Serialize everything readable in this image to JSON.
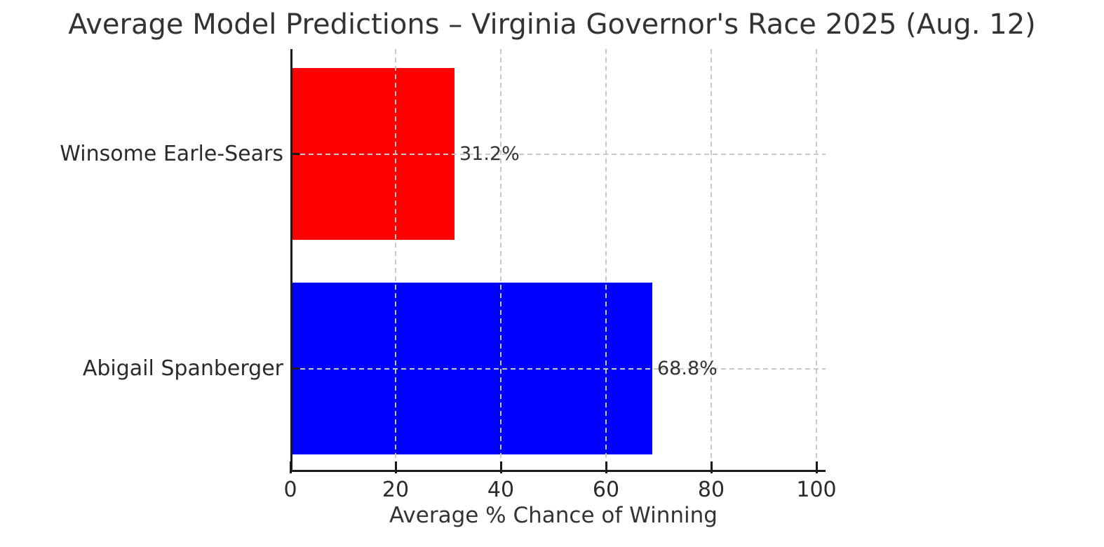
{
  "chart_data": {
    "type": "bar",
    "orientation": "horizontal",
    "title": "Average Model Predictions – Virginia Governor's Race 2025 (Aug. 12)",
    "xlabel": "Average % Chance of Winning",
    "ylabel": "",
    "categories": [
      "Winsome Earle-Sears",
      "Abigail Spanberger"
    ],
    "values": [
      31.2,
      68.8
    ],
    "value_labels": [
      "31.2%",
      "68.8%"
    ],
    "bar_colors": [
      "#ff0000",
      "#0000ff"
    ],
    "xlim": [
      0,
      101.7
    ],
    "xticks": [
      0,
      20,
      40,
      60,
      80,
      100
    ],
    "xtick_labels": [
      "0",
      "20",
      "40",
      "60",
      "80",
      "100"
    ],
    "grid": {
      "show": true,
      "style": "dashed",
      "color": "#c9c9c9"
    },
    "legend": "none",
    "colors": {
      "axis": "#1a1a1a",
      "text": "#333333",
      "background": "#ffffff"
    }
  }
}
